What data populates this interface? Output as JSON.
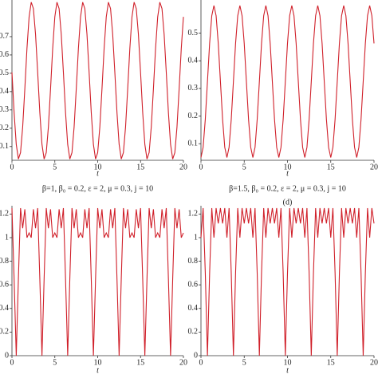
{
  "chart_data": [
    {
      "type": "line",
      "xlabel": "t",
      "caption": "β=1, β₀ = 0.2, ε = 2, μ = 0.3, j = 10",
      "x": [
        0,
        0.25,
        0.5,
        0.75,
        1,
        1.25,
        1.5,
        1.75,
        2,
        2.25,
        2.5,
        2.75,
        3,
        3.25,
        3.5,
        3.75,
        4,
        4.25,
        4.5,
        4.75,
        5,
        5.25,
        5.5,
        5.75,
        6,
        6.25,
        6.5,
        6.75,
        7,
        7.25,
        7.5,
        7.75,
        8,
        8.25,
        8.5,
        8.75,
        9,
        9.25,
        9.5,
        9.75,
        10,
        10.25,
        10.5,
        10.75,
        11,
        11.25,
        11.5,
        11.75,
        12,
        12.25,
        12.5,
        12.75,
        13,
        13.25,
        13.5,
        13.75,
        14,
        14.25,
        14.5,
        14.75,
        15,
        15.25,
        15.5,
        15.75,
        16,
        16.25,
        16.5,
        16.75,
        17,
        17.25,
        17.5,
        17.75,
        18,
        18.25,
        18.5,
        18.75,
        19,
        19.25,
        19.5,
        19.75,
        20
      ],
      "series": [
        {
          "color": "#d0202a",
          "values": [
            0.505,
            0.285,
            0.112,
            0.032,
            0.067,
            0.207,
            0.415,
            0.635,
            0.808,
            0.888,
            0.853,
            0.713,
            0.505,
            0.285,
            0.112,
            0.032,
            0.067,
            0.207,
            0.415,
            0.635,
            0.808,
            0.888,
            0.853,
            0.713,
            0.505,
            0.285,
            0.112,
            0.032,
            0.067,
            0.207,
            0.415,
            0.635,
            0.808,
            0.888,
            0.853,
            0.713,
            0.505,
            0.285,
            0.112,
            0.032,
            0.067,
            0.207,
            0.415,
            0.635,
            0.808,
            0.888,
            0.853,
            0.713,
            0.505,
            0.285,
            0.112,
            0.032,
            0.067,
            0.207,
            0.415,
            0.635,
            0.808,
            0.888,
            0.853,
            0.713,
            0.505,
            0.285,
            0.112,
            0.032,
            0.067,
            0.207,
            0.415,
            0.635,
            0.808,
            0.888,
            0.853,
            0.713,
            0.505,
            0.285,
            0.112,
            0.032,
            0.067,
            0.207,
            0.415,
            0.635,
            0.808
          ]
        }
      ],
      "xlim": [
        0,
        20
      ],
      "xticks": [
        0,
        5,
        10,
        15,
        20
      ],
      "ylim": [
        0.025,
        0.9
      ],
      "yticks": [
        0.1,
        0.2,
        0.3,
        0.4,
        0.5,
        0.6,
        0.7
      ]
    },
    {
      "type": "line",
      "xlabel": "t",
      "caption": "β=1.5, β₀ = 0.2, ε = 2, μ = 0.3, j = 10",
      "panel_label": "(d)",
      "x": [
        0,
        0.25,
        0.5,
        0.75,
        1,
        1.25,
        1.5,
        1.75,
        2,
        2.25,
        2.5,
        2.75,
        3,
        3.25,
        3.5,
        3.75,
        4,
        4.25,
        4.5,
        4.75,
        5,
        5.25,
        5.5,
        5.75,
        6,
        6.25,
        6.5,
        6.75,
        7,
        7.25,
        7.5,
        7.75,
        8,
        8.25,
        8.5,
        8.75,
        9,
        9.25,
        9.5,
        9.75,
        10,
        10.25,
        10.5,
        10.75,
        11,
        11.25,
        11.5,
        11.75,
        12,
        12.25,
        12.5,
        12.75,
        13,
        13.25,
        13.5,
        13.75,
        14,
        14.25,
        14.5,
        14.75,
        15,
        15.25,
        15.5,
        15.75,
        16,
        16.25,
        16.5,
        16.75,
        17,
        17.25,
        17.5,
        17.75,
        18,
        18.25,
        18.5,
        18.75,
        19,
        19.25,
        19.5,
        19.75,
        20
      ],
      "series": [
        {
          "color": "#d0202a",
          "values": [
            0.05,
            0.087,
            0.188,
            0.325,
            0.463,
            0.563,
            0.6,
            0.563,
            0.463,
            0.325,
            0.188,
            0.087,
            0.05,
            0.087,
            0.188,
            0.325,
            0.463,
            0.563,
            0.6,
            0.563,
            0.463,
            0.325,
            0.188,
            0.087,
            0.05,
            0.087,
            0.188,
            0.325,
            0.463,
            0.563,
            0.6,
            0.563,
            0.463,
            0.325,
            0.188,
            0.087,
            0.05,
            0.087,
            0.188,
            0.325,
            0.463,
            0.563,
            0.6,
            0.563,
            0.463,
            0.325,
            0.188,
            0.087,
            0.05,
            0.087,
            0.188,
            0.325,
            0.463,
            0.563,
            0.6,
            0.563,
            0.463,
            0.325,
            0.188,
            0.087,
            0.05,
            0.087,
            0.188,
            0.325,
            0.463,
            0.563,
            0.6,
            0.563,
            0.463,
            0.325,
            0.188,
            0.087,
            0.05,
            0.087,
            0.188,
            0.325,
            0.463,
            0.563,
            0.6,
            0.563,
            0.463
          ]
        }
      ],
      "xlim": [
        0,
        20
      ],
      "xticks": [
        0,
        5,
        10,
        15,
        20
      ],
      "ylim": [
        0.04,
        0.62
      ],
      "yticks": [
        0.1,
        0.2,
        0.3,
        0.4,
        0.5
      ]
    },
    {
      "type": "line",
      "xlabel": "t",
      "x": [
        0,
        0.25,
        0.5,
        0.75,
        1,
        1.25,
        1.5,
        1.75,
        2,
        2.25,
        2.5,
        2.75,
        3,
        3.25,
        3.5,
        3.75,
        4,
        4.25,
        4.5,
        4.75,
        5,
        5.25,
        5.5,
        5.75,
        6,
        6.25,
        6.5,
        6.75,
        7,
        7.25,
        7.5,
        7.75,
        8,
        8.25,
        8.5,
        8.75,
        9,
        9.25,
        9.5,
        9.75,
        10,
        10.25,
        10.5,
        10.75,
        11,
        11.25,
        11.5,
        11.75,
        12,
        12.25,
        12.5,
        12.75,
        13,
        13.25,
        13.5,
        13.75,
        14,
        14.25,
        14.5,
        14.75,
        15,
        15.25,
        15.5,
        15.75,
        16,
        16.25,
        16.5,
        16.75,
        17,
        17.25,
        17.5,
        17.75,
        18,
        18.25,
        18.5,
        18.75,
        19,
        19.25,
        19.5,
        19.75,
        20
      ],
      "series": [
        {
          "color": "#d0202a",
          "values": [
            1.25,
            0.65,
            0,
            0.65,
            1.25,
            1.08,
            1.24,
            1.0,
            1.04,
            1.0,
            1.24,
            1.08,
            1.25,
            0.65,
            0,
            0.65,
            1.25,
            1.08,
            1.24,
            1.0,
            1.04,
            1.0,
            1.24,
            1.08,
            1.25,
            0.65,
            0,
            0.65,
            1.25,
            1.08,
            1.24,
            1.0,
            1.04,
            1.0,
            1.24,
            1.08,
            1.25,
            0.65,
            0,
            0.65,
            1.25,
            1.08,
            1.24,
            1.0,
            1.04,
            1.0,
            1.24,
            1.08,
            1.25,
            0.65,
            0,
            0.65,
            1.25,
            1.08,
            1.24,
            1.0,
            1.04,
            1.0,
            1.24,
            1.08,
            1.25,
            0.65,
            0,
            0.65,
            1.25,
            1.08,
            1.24,
            1.0,
            1.04,
            1.0,
            1.24,
            1.08,
            1.25,
            0.65,
            0,
            0.65,
            1.25,
            1.08,
            1.24,
            1.0,
            1.04
          ]
        }
      ],
      "xlim": [
        0,
        20
      ],
      "xticks": [
        0,
        5,
        10,
        15,
        20
      ],
      "ylim": [
        0,
        1.27
      ],
      "yticks": [
        0,
        0.2,
        0.4,
        0.6,
        0.8,
        1,
        1.2
      ]
    },
    {
      "type": "line",
      "xlabel": "t",
      "x": [
        0,
        0.25,
        0.5,
        0.75,
        1,
        1.25,
        1.5,
        1.75,
        2,
        2.25,
        2.5,
        2.75,
        3,
        3.25,
        3.5,
        3.75,
        4,
        4.25,
        4.5,
        4.75,
        5,
        5.25,
        5.5,
        5.75,
        6,
        6.25,
        6.5,
        6.75,
        7,
        7.25,
        7.5,
        7.75,
        8,
        8.25,
        8.5,
        8.75,
        9,
        9.25,
        9.5,
        9.75,
        10,
        10.25,
        10.5,
        10.75,
        11,
        11.25,
        11.5,
        11.75,
        12,
        12.25,
        12.5,
        12.75,
        13,
        13.25,
        13.5,
        13.75,
        14,
        14.25,
        14.5,
        14.75,
        15,
        15.25,
        15.5,
        15.75,
        16,
        16.25,
        16.5,
        16.75,
        17,
        17.25,
        17.5,
        17.75,
        18,
        18.25,
        18.5,
        18.75,
        19,
        19.25,
        19.5,
        19.75,
        20
      ],
      "series": [
        {
          "color": "#d0202a",
          "values": [
            1.0,
            1.25,
            0.7,
            0,
            0.7,
            1.25,
            1.0,
            1.25,
            1.12,
            1.25,
            1.12,
            1.25,
            1.0,
            1.25,
            0.7,
            0,
            0.7,
            1.25,
            1.0,
            1.25,
            1.12,
            1.25,
            1.12,
            1.25,
            1.0,
            1.25,
            0.7,
            0,
            0.7,
            1.25,
            1.0,
            1.25,
            1.12,
            1.25,
            1.12,
            1.25,
            1.0,
            1.25,
            0.7,
            0,
            0.7,
            1.25,
            1.0,
            1.25,
            1.12,
            1.25,
            1.12,
            1.25,
            1.0,
            1.25,
            0.7,
            0,
            0.7,
            1.25,
            1.0,
            1.25,
            1.12,
            1.25,
            1.12,
            1.25,
            1.0,
            1.25,
            0.7,
            0,
            0.7,
            1.25,
            1.0,
            1.25,
            1.12,
            1.25,
            1.12,
            1.25,
            1.0,
            1.25,
            0.7,
            0,
            0.7,
            1.25,
            1.0,
            1.25,
            1.12
          ]
        }
      ],
      "xlim": [
        0,
        20
      ],
      "xticks": [
        0,
        5,
        10,
        15,
        20
      ],
      "ylim": [
        0,
        1.27
      ],
      "yticks": [
        0,
        0.2,
        0.4,
        0.6,
        0.8,
        1,
        1.2
      ]
    }
  ]
}
